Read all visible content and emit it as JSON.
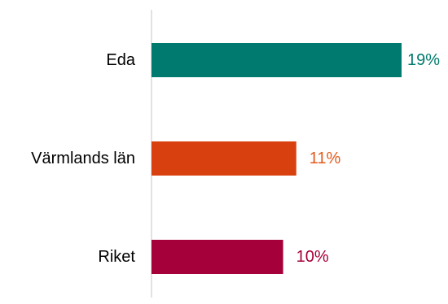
{
  "chart_data": {
    "type": "bar",
    "orientation": "horizontal",
    "categories": [
      "Eda",
      "Värmlands län",
      "Riket"
    ],
    "values": [
      19,
      11,
      10
    ],
    "value_labels": [
      "19%",
      "11%",
      "10%"
    ],
    "colors": [
      "#007A6E",
      "#D9400F",
      "#A5003A"
    ],
    "label_colors": [
      "#007A6E",
      "#E25A1C",
      "#A5003A"
    ],
    "axis_line_color": "#D9D9D9",
    "unit": "%",
    "xlim": [
      0,
      19
    ],
    "grid": false,
    "legend": "none",
    "title": "",
    "xlabel": "",
    "ylabel": ""
  }
}
